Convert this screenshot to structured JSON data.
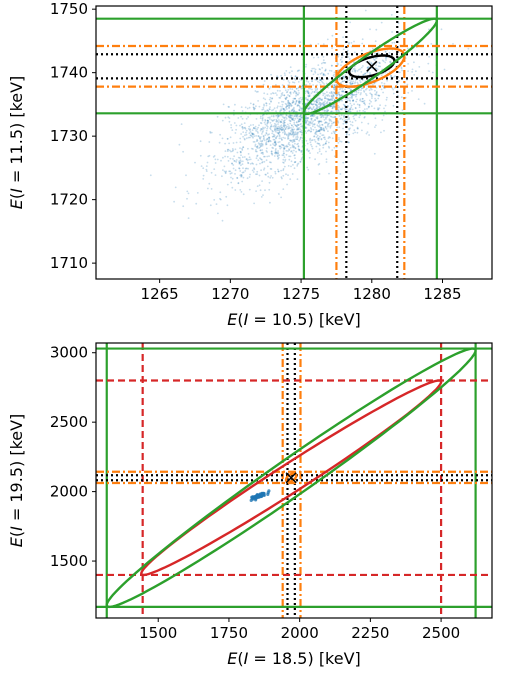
{
  "chart_data": [
    {
      "type": "scatter",
      "xlabel_parts": [
        "E(",
        "I",
        " = 10.5) [keV]"
      ],
      "ylabel_parts": [
        "E(",
        "I",
        " = 11.5) [keV]"
      ],
      "xlim": [
        1260.5,
        1288.5
      ],
      "ylim": [
        1707.5,
        1750.5
      ],
      "xticks": [
        1265,
        1270,
        1275,
        1280,
        1285
      ],
      "yticks": [
        1710,
        1720,
        1730,
        1740,
        1750
      ],
      "xtick_labels": [
        "1265",
        "1270",
        "1275",
        "1280",
        "1285"
      ],
      "ytick_labels": [
        "1710",
        "1720",
        "1730",
        "1740",
        "1750"
      ],
      "grid": false,
      "scatter_cloud": {
        "color": "#1f77b4",
        "center": [
          1275.5,
          1733.5
        ],
        "spread_x": 3.2,
        "spread_y": 5.0,
        "correlation": 0.7,
        "alpha": 0.25
      },
      "marker": {
        "symbol": "x",
        "x": 1280.0,
        "y": 1741.0,
        "color": "#000000"
      },
      "ellipses": [
        {
          "color": "#000000",
          "style": "solid",
          "center": [
            1280.0,
            1741.0
          ],
          "rx": 1.6,
          "ry": 1.7,
          "corr": 0.5
        },
        {
          "color": "#ff7f0e",
          "style": "solid",
          "center": [
            1279.9,
            1740.8
          ],
          "rx": 2.4,
          "ry": 3.0,
          "corr": 0.6
        },
        {
          "color": "#2ca02c",
          "style": "solid",
          "center": [
            1279.9,
            1741.0
          ],
          "rx": 4.7,
          "ry": 7.5,
          "corr": 0.96
        }
      ],
      "vlines": [
        {
          "x": 1278.2,
          "color": "#000000",
          "style": "dotted"
        },
        {
          "x": 1281.8,
          "color": "#000000",
          "style": "dotted"
        },
        {
          "x": 1277.5,
          "color": "#ff7f0e",
          "style": "dashdot"
        },
        {
          "x": 1282.3,
          "color": "#ff7f0e",
          "style": "dashdot"
        },
        {
          "x": 1275.2,
          "color": "#2ca02c",
          "style": "solid"
        },
        {
          "x": 1284.6,
          "color": "#2ca02c",
          "style": "solid"
        }
      ],
      "hlines": [
        {
          "y": 1742.9,
          "color": "#000000",
          "style": "dotted"
        },
        {
          "y": 1739.1,
          "color": "#000000",
          "style": "dotted"
        },
        {
          "y": 1744.2,
          "color": "#ff7f0e",
          "style": "dashdot"
        },
        {
          "y": 1737.8,
          "color": "#ff7f0e",
          "style": "dashdot"
        },
        {
          "y": 1748.5,
          "color": "#2ca02c",
          "style": "solid"
        },
        {
          "y": 1733.6,
          "color": "#2ca02c",
          "style": "solid"
        }
      ]
    },
    {
      "type": "scatter",
      "xlabel_parts": [
        "E(",
        "I",
        " = 18.5) [keV]"
      ],
      "ylabel_parts": [
        "E(",
        "I",
        " = 19.5) [keV]"
      ],
      "xlim": [
        1280,
        2680
      ],
      "ylim": [
        1090,
        3070
      ],
      "xticks": [
        1500,
        1750,
        2000,
        2250,
        2500
      ],
      "yticks": [
        1500,
        2000,
        2500,
        3000
      ],
      "xtick_labels": [
        "1500",
        "1750",
        "2000",
        "2250",
        "2500"
      ],
      "ytick_labels": [
        "1500",
        "2000",
        "2500",
        "3000"
      ],
      "grid": false,
      "scatter_cloud": {
        "color": "#1f77b4",
        "center": [
          1850,
          1965
        ],
        "spread_x": 18,
        "spread_y": 15,
        "correlation": 0.9,
        "alpha": 0.8
      },
      "marker": {
        "symbol": "x",
        "x": 1970,
        "y": 2100,
        "color": "#000000"
      },
      "ellipses": [
        {
          "color": "#d62728",
          "style": "solid",
          "center": [
            1970,
            2100
          ],
          "rx": 530,
          "ry": 700,
          "corr": 0.985
        },
        {
          "color": "#2ca02c",
          "style": "solid",
          "center": [
            1970,
            2100
          ],
          "rx": 652,
          "ry": 930,
          "corr": 0.985
        },
        {
          "color": "#ff7f0e",
          "style": "solid",
          "center": [
            1970,
            2100
          ],
          "rx": 18,
          "ry": 30,
          "corr": 0.5
        }
      ],
      "vlines": [
        {
          "x": 1957,
          "color": "#000000",
          "style": "dotted"
        },
        {
          "x": 1983,
          "color": "#000000",
          "style": "dotted"
        },
        {
          "x": 1940,
          "color": "#ff7f0e",
          "style": "dashdot"
        },
        {
          "x": 2003,
          "color": "#ff7f0e",
          "style": "dashdot"
        },
        {
          "x": 1445,
          "color": "#d62728",
          "style": "dashed"
        },
        {
          "x": 2500,
          "color": "#d62728",
          "style": "dashed"
        },
        {
          "x": 1318,
          "color": "#2ca02c",
          "style": "solid"
        },
        {
          "x": 2622,
          "color": "#2ca02c",
          "style": "solid"
        }
      ],
      "hlines": [
        {
          "y": 2118,
          "color": "#000000",
          "style": "dotted"
        },
        {
          "y": 2082,
          "color": "#000000",
          "style": "dotted"
        },
        {
          "y": 2143,
          "color": "#ff7f0e",
          "style": "dashdot"
        },
        {
          "y": 2062,
          "color": "#ff7f0e",
          "style": "dashdot"
        },
        {
          "y": 2800,
          "color": "#d62728",
          "style": "dashed"
        },
        {
          "y": 1400,
          "color": "#d62728",
          "style": "dashed"
        },
        {
          "y": 3030,
          "color": "#2ca02c",
          "style": "solid"
        },
        {
          "y": 1170,
          "color": "#2ca02c",
          "style": "solid"
        }
      ]
    }
  ]
}
